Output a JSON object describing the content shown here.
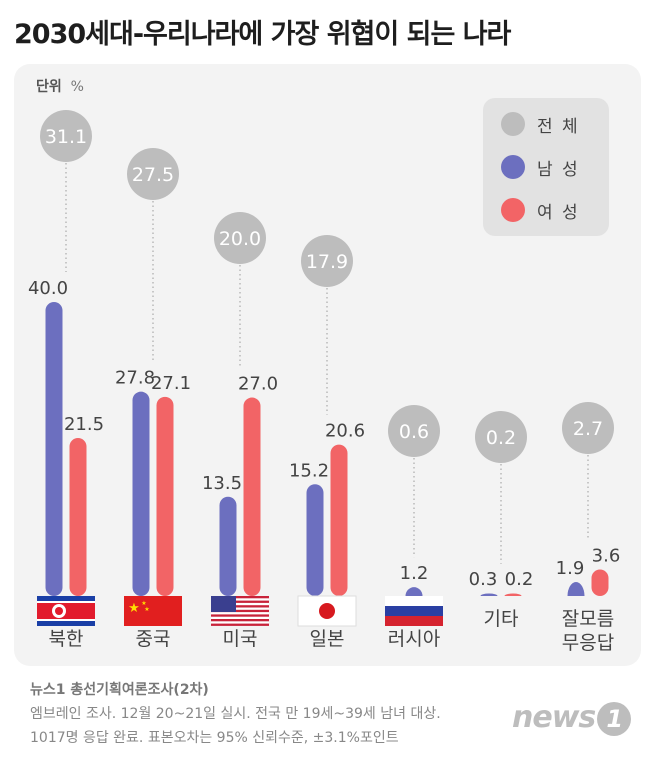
{
  "title": "2030세대-우리나라에 가장 위협이 되는 나라",
  "unit": {
    "label": "단위",
    "symbol": "%"
  },
  "legend": [
    {
      "label": "전 체",
      "color": "#bdbdbd"
    },
    {
      "label": "남 성",
      "color": "#6c6fbf"
    },
    {
      "label": "여 성",
      "color": "#f26466"
    }
  ],
  "chart_data": {
    "type": "bar",
    "unit": "%",
    "categories": [
      "북한",
      "중국",
      "미국",
      "일본",
      "러시아",
      "기타",
      "잘모름\n무응답"
    ],
    "series": [
      {
        "name": "전 체",
        "values": [
          31.1,
          27.5,
          20.0,
          17.9,
          0.6,
          0.2,
          2.7
        ]
      },
      {
        "name": "남 성",
        "values": [
          40.0,
          27.8,
          13.5,
          15.2,
          1.2,
          0.3,
          1.9
        ]
      },
      {
        "name": "여 성",
        "values": [
          21.5,
          27.1,
          27.0,
          20.6,
          0.0,
          0.2,
          3.6
        ]
      }
    ],
    "labels": {
      "total": [
        "31.1",
        "27.5",
        "20.0",
        "17.9",
        "0.6",
        "0.2",
        "2.7"
      ],
      "male": [
        "40.0",
        "27.8",
        "13.5",
        "15.2",
        "1.2",
        "0.3",
        "1.9"
      ],
      "female": [
        "21.5",
        "27.1",
        "27.0",
        "20.6",
        "",
        "0.2",
        "3.6"
      ]
    },
    "flags": [
      "north-korea-flag",
      "china-flag",
      "usa-flag",
      "japan-flag",
      "russia-flag",
      "",
      ""
    ]
  },
  "source": {
    "title": "뉴스1 총선기획여론조사(2차)",
    "line1": "엠브레인 조사. 12월 20~21일 실시. 전국 만 19세~39세 남녀 대상.",
    "line2": "1017명 응답 완료. 표본오차는 95% 신뢰수준, ±3.1%포인트"
  },
  "logo": {
    "text": "news",
    "mark": "1"
  }
}
